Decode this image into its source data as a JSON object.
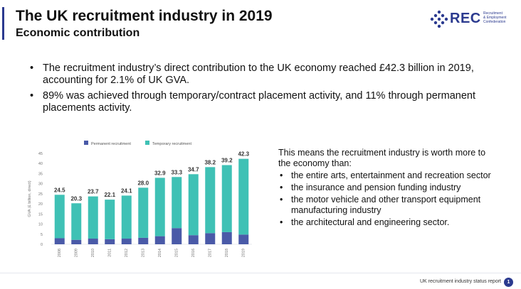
{
  "header": {
    "title": "The UK recruitment industry in 2019",
    "subtitle": "Economic contribution"
  },
  "logo": {
    "word": "REC",
    "lines": [
      "Recruitment",
      "& Employment",
      "Confederation"
    ],
    "icon": "rec-diamond-dots-icon",
    "color": "#2b3a8f"
  },
  "bullets": [
    "The recruitment industry’s direct contribution to the UK economy reached £42.3 billion in 2019, accounting for 2.1% of UK GVA.",
    "89% was achieved through temporary/contract placement activity, and 11% through permanent placements activity."
  ],
  "chart_data": {
    "type": "bar",
    "stacked": true,
    "categories": [
      "2008",
      "2009",
      "2010",
      "2011",
      "2012",
      "2013",
      "2014",
      "2015",
      "2016",
      "2017",
      "2018",
      "2019"
    ],
    "series": [
      {
        "name": "Permanent recruitment",
        "color": "#4a5aa8",
        "values": [
          3.0,
          2.2,
          2.8,
          2.5,
          2.8,
          3.2,
          4.0,
          8.0,
          4.5,
          5.5,
          6.0,
          4.8
        ]
      },
      {
        "name": "Temporary recruitment",
        "color": "#3fc1b5",
        "values": [
          21.5,
          18.1,
          20.9,
          19.6,
          21.3,
          24.8,
          28.9,
          25.3,
          30.2,
          32.7,
          33.2,
          37.5
        ]
      }
    ],
    "totals": [
      "24.5",
      "20.3",
      "23.7",
      "22.1",
      "24.1",
      "28.0",
      "32.9",
      "33.3",
      "34.7",
      "38.2",
      "39.2",
      "42.3"
    ],
    "ylabel": "GVA (£ billion, direct)",
    "yticks": [
      0,
      5,
      10,
      15,
      20,
      25,
      30,
      35,
      40,
      45
    ],
    "ylim": [
      0,
      45
    ],
    "grid": false,
    "legend": "top-center"
  },
  "side": {
    "intro": "This means the recruitment industry is worth more to the economy than:",
    "items": [
      "the entire arts, entertainment and recreation sector",
      "the insurance and pension funding industry",
      "the motor vehicle and other transport equipment manufacturing industry",
      "the architectural and engineering sector."
    ]
  },
  "footer": {
    "text": "UK recruitment industry status report",
    "page": "1"
  }
}
